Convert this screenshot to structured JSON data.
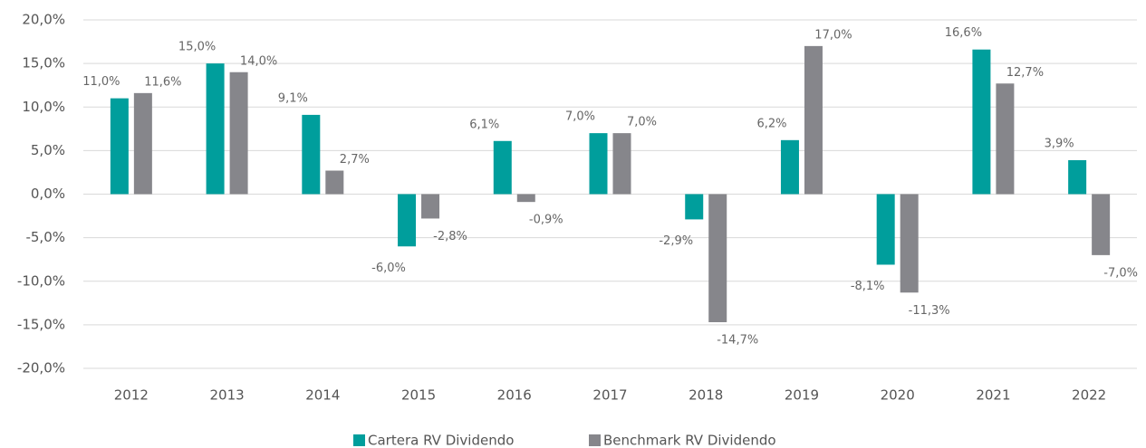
{
  "chart_data": {
    "type": "bar",
    "categories": [
      "2012",
      "2013",
      "2014",
      "2015",
      "2016",
      "2017",
      "2018",
      "2019",
      "2020",
      "2021",
      "2022"
    ],
    "series": [
      {
        "name": "Cartera RV Dividendo",
        "color": "#009e9c",
        "values": [
          11.0,
          15.0,
          9.1,
          -6.0,
          6.1,
          7.0,
          -2.9,
          6.2,
          -8.1,
          16.6,
          3.9
        ],
        "value_labels": [
          "11,0%",
          "15,0%",
          "9,1%",
          "-6,0%",
          "6,1%",
          "7,0%",
          "-2,9%",
          "6,2%",
          "-8,1%",
          "16,6%",
          "3,9%"
        ]
      },
      {
        "name": "Benchmark RV Dividendo",
        "color": "#86868b",
        "values": [
          11.6,
          14.0,
          2.7,
          -2.8,
          -0.9,
          7.0,
          -14.7,
          17.0,
          -11.3,
          12.7,
          -7.0
        ],
        "value_labels": [
          "11,6%",
          "14,0%",
          "2,7%",
          "-2,8%",
          "-0,9%",
          "7,0%",
          "-14,7%",
          "17,0%",
          "-11,3%",
          "12,7%",
          "-7,0%"
        ]
      }
    ],
    "ylim": [
      -20,
      20
    ],
    "yticks": [
      {
        "value": -20,
        "label": "-20,0%"
      },
      {
        "value": -15,
        "label": "-15,0%"
      },
      {
        "value": -10,
        "label": "-10,0%"
      },
      {
        "value": -5,
        "label": "-5,0%"
      },
      {
        "value": 0,
        "label": "0,0%"
      },
      {
        "value": 5,
        "label": "5,0%"
      },
      {
        "value": 10,
        "label": "10,0%"
      },
      {
        "value": 15,
        "label": "15,0%"
      },
      {
        "value": 20,
        "label": "20,0%"
      }
    ],
    "grid": true,
    "legend": "bottom"
  }
}
